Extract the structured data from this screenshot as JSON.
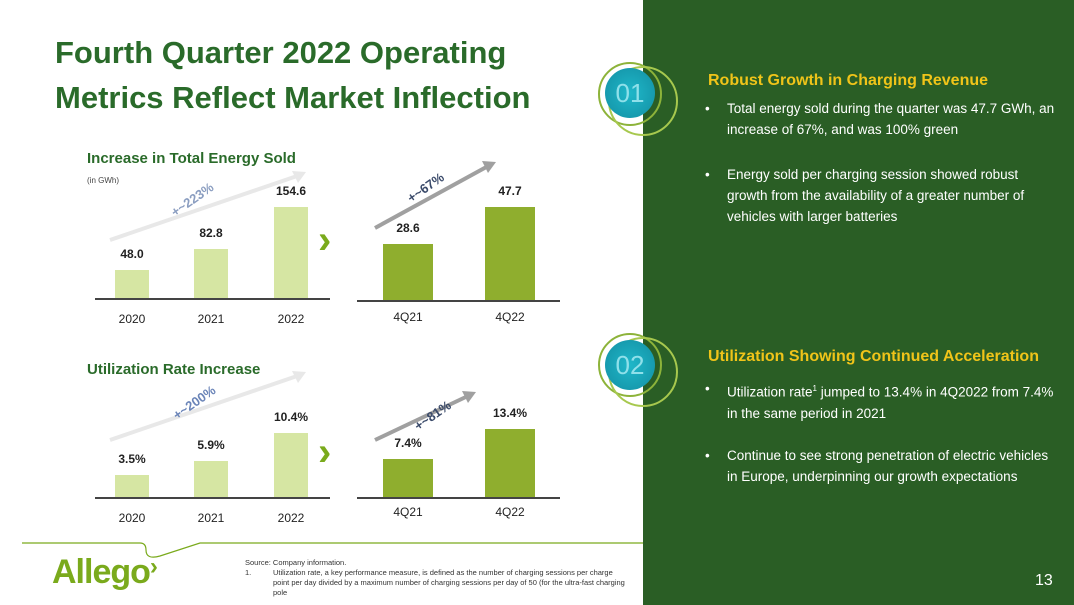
{
  "title": "Fourth Quarter 2022 Operating Metrics Reflect Market Inflection",
  "chart_data": [
    {
      "type": "bar",
      "title": "Increase in Total Energy Sold",
      "unit": "(in GWh)",
      "categories": [
        "2020",
        "2021",
        "2022"
      ],
      "values": [
        48.0,
        82.8,
        154.6
      ],
      "labels": [
        "48.0",
        "82.8",
        "154.6"
      ],
      "growth": "+~223%"
    },
    {
      "type": "bar",
      "title": "Increase in Total Energy Sold",
      "categories": [
        "4Q21",
        "4Q22"
      ],
      "values": [
        28.6,
        47.7
      ],
      "labels": [
        "28.6",
        "47.7"
      ],
      "growth": "+~67%"
    },
    {
      "type": "bar",
      "title": "Utilization Rate Increase",
      "categories": [
        "2020",
        "2021",
        "2022"
      ],
      "values": [
        3.5,
        5.9,
        10.4
      ],
      "labels": [
        "3.5%",
        "5.9%",
        "10.4%"
      ],
      "growth": "+~200%"
    },
    {
      "type": "bar",
      "title": "Utilization Rate Increase",
      "categories": [
        "4Q21",
        "4Q22"
      ],
      "values": [
        7.4,
        13.4
      ],
      "labels": [
        "7.4%",
        "13.4%"
      ],
      "growth": "+~81%"
    }
  ],
  "panel": {
    "s1": {
      "num": "01",
      "heading": "Robust Growth in Charging Revenue",
      "bullets": [
        "Total energy sold during the quarter was 47.7 GWh, an increase of 67%, and was 100% green",
        "Energy sold per charging session showed robust growth from the availability of a greater number of vehicles with larger batteries"
      ]
    },
    "s2": {
      "num": "02",
      "heading": "Utilization Showing Continued Acceleration",
      "b1a": "Utilization rate",
      "b1sup": "1",
      "b1b": " jumped to 13.4% in 4Q2022 from 7.4% in the same period in 2021",
      "b2": "Continue to see strong penetration of electric vehicles in Europe, underpinning our growth expectations"
    },
    "page": "13"
  },
  "footer": {
    "source": "Source: Company information.",
    "note_num": "1.",
    "note": "Utilization rate, a key performance measure, is defined as the number of charging sessions per charge point per day divided by a maximum number of charging sessions per day of 50 (for the ultra-fast charging pole",
    "logo": "Allego"
  },
  "colors": {
    "light": "#d6e6a3",
    "dark": "#8fae2e",
    "green": "#2a6b2a",
    "panel": "#2a5e25",
    "gold": "#f0c419"
  }
}
